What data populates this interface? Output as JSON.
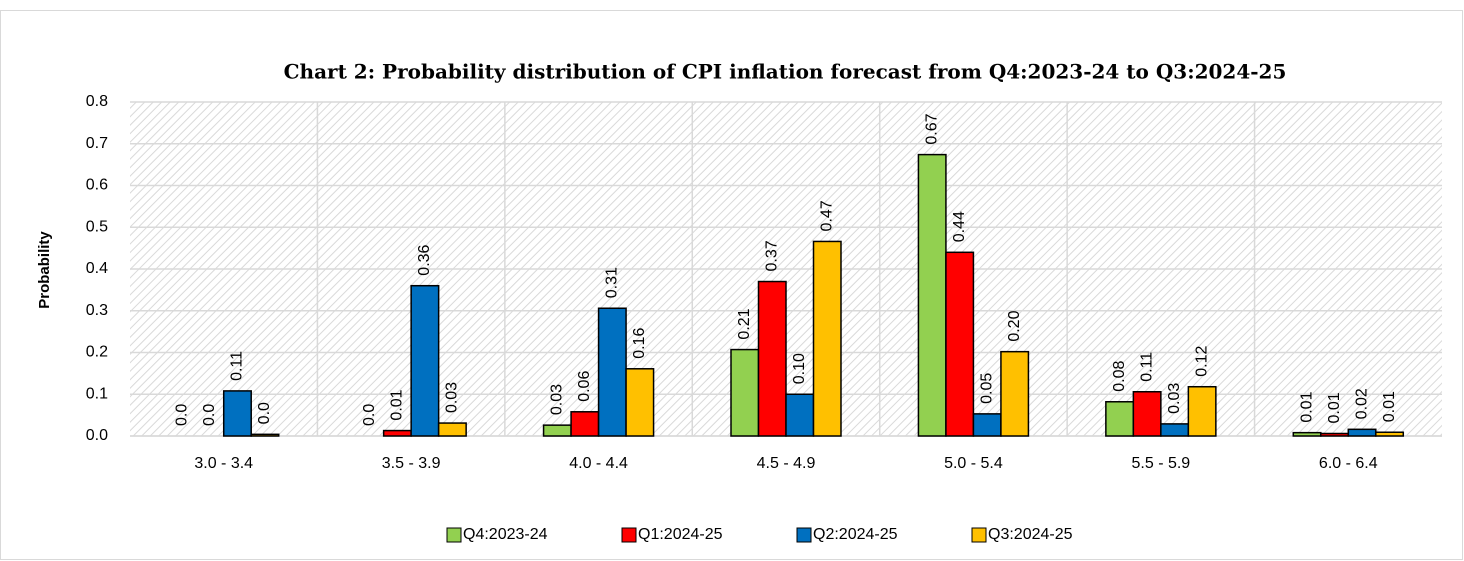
{
  "chart_data": {
    "type": "bar",
    "title": "Chart 2: Probability distribution of  CPI inflation forecast from Q4:2023-24 to Q3:2024-25",
    "y_label": "Probability",
    "categories": [
      "3.0 - 3.4",
      "3.5 - 3.9",
      "4.0 - 4.4",
      "4.5 - 4.9",
      "5.0 - 5.4",
      "5.5 - 5.9",
      "6.0 - 6.4"
    ],
    "series": [
      {
        "name": "Q4:2023-24",
        "color": "#92d050",
        "values": [
          0,
          0,
          0.026,
          0.207,
          0.674,
          0.082,
          0.008
        ],
        "value_labels": [
          "0.0",
          "0.0",
          "0.03",
          "0.21",
          "0.67",
          "0.08",
          "0.01"
        ]
      },
      {
        "name": "Q1:2024-25",
        "color": "#ff0000",
        "values": [
          0,
          0.013,
          0.058,
          0.37,
          0.44,
          0.106,
          0.006
        ],
        "value_labels": [
          "0.0",
          "0.01",
          "0.06",
          "0.37",
          "0.44",
          "0.11",
          "0.01"
        ]
      },
      {
        "name": "Q2:2024-25",
        "color": "#0070c0",
        "values": [
          0.108,
          0.36,
          0.306,
          0.1,
          0.053,
          0.029,
          0.016
        ],
        "value_labels": [
          "0.11",
          "0.36",
          "0.31",
          "0.10",
          "0.05",
          "0.03",
          "0.02"
        ]
      },
      {
        "name": "Q3:2024-25",
        "color": "#ffc000",
        "values": [
          0.004,
          0.031,
          0.161,
          0.466,
          0.202,
          0.118,
          0.009
        ],
        "value_labels": [
          "0.0",
          "0.03",
          "0.16",
          "0.47",
          "0.20",
          "0.12",
          "0.01"
        ]
      }
    ],
    "ylim": [
      0,
      0.8
    ],
    "yticks": [
      {
        "value": 0,
        "label": "0.0"
      },
      0.1,
      0.2,
      0.3,
      0.4,
      0.5,
      0.6,
      0.7,
      0.8
    ],
    "grid": true,
    "legend": "bottom"
  }
}
